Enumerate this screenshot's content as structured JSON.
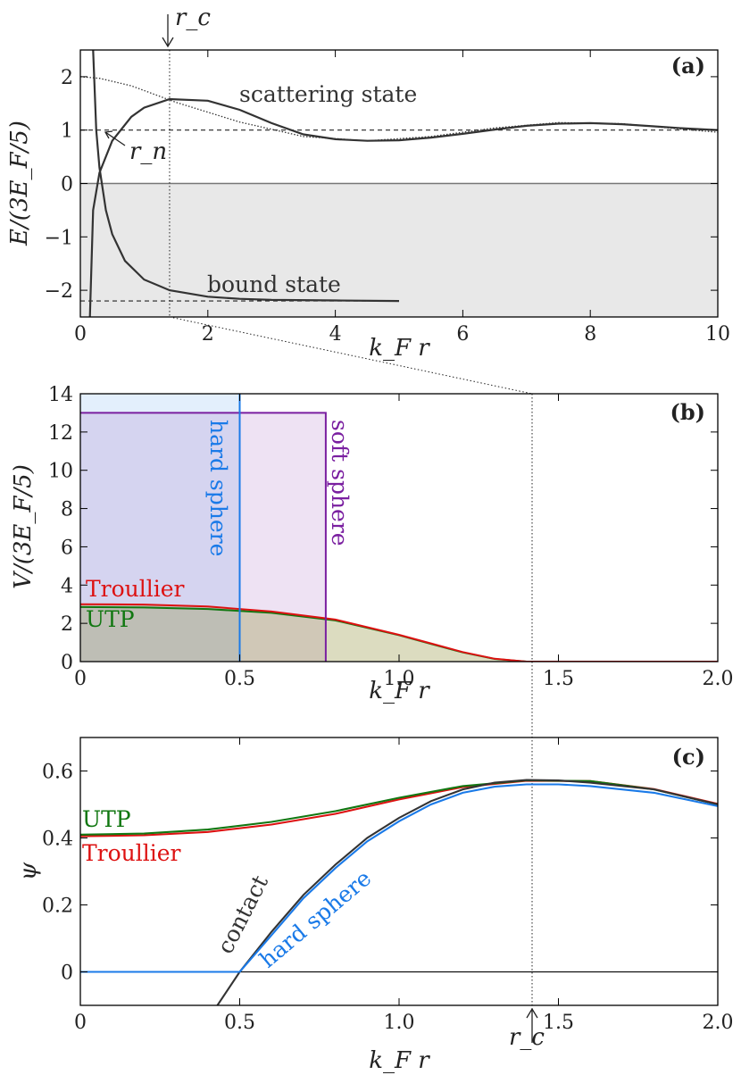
{
  "figure_title": "",
  "chart_data": [
    {
      "type": "line",
      "panel_label": "(a)",
      "xlabel": "k_F r",
      "ylabel": "E/(3E_F/5)",
      "xlim": [
        0,
        10
      ],
      "ylim": [
        -2.5,
        2.5
      ],
      "xticks": [
        "0",
        "2",
        "4",
        "6",
        "8",
        "10"
      ],
      "yticks": [
        "−2",
        "−1",
        "0",
        "1",
        "2"
      ],
      "series": [
        {
          "name": "scattering state",
          "x": [
            0.15,
            0.2,
            0.3,
            0.5,
            0.8,
            1.0,
            1.4,
            2.0,
            2.5,
            3.0,
            3.5,
            4.0,
            4.5,
            5.0,
            5.5,
            6.0,
            6.5,
            7.0,
            7.5,
            8.0,
            8.5,
            9.0,
            9.5,
            10.0
          ],
          "y": [
            -2.5,
            -0.5,
            0.2,
            0.8,
            1.25,
            1.42,
            1.58,
            1.55,
            1.38,
            1.13,
            0.92,
            0.83,
            0.8,
            0.81,
            0.86,
            0.93,
            1.01,
            1.08,
            1.12,
            1.13,
            1.11,
            1.07,
            1.03,
            1.0
          ]
        },
        {
          "name": "bound state",
          "x": [
            0.2,
            0.25,
            0.3,
            0.4,
            0.5,
            0.7,
            1.0,
            1.4,
            2.0,
            2.5,
            3.0,
            4.0,
            5.0
          ],
          "y": [
            2.5,
            1.0,
            0.3,
            -0.5,
            -0.95,
            -1.45,
            -1.8,
            -2.0,
            -2.12,
            -2.16,
            -2.18,
            -2.19,
            -2.2
          ]
        },
        {
          "name": "dotted reference",
          "x": [
            0.0,
            0.3,
            0.8,
            1.5,
            2.5,
            3.5,
            4.5,
            5.5,
            6.5,
            7.5,
            8.5,
            9.5,
            10.0
          ],
          "y": [
            2.0,
            1.97,
            1.83,
            1.52,
            1.15,
            0.88,
            0.8,
            0.88,
            1.04,
            1.14,
            1.12,
            1.01,
            0.96
          ]
        }
      ],
      "hlines": [
        {
          "name": "scattering energy",
          "y": 1.0
        },
        {
          "name": "bound energy",
          "y": -2.2
        },
        {
          "name": "zero",
          "y": 0
        }
      ],
      "vline_rc": 1.4,
      "annotations": [
        "scattering state",
        "bound state",
        "r_n",
        "r_c"
      ]
    },
    {
      "type": "line",
      "panel_label": "(b)",
      "xlabel": "k_F r",
      "ylabel": "V/(3E_F/5)",
      "xlim": [
        0,
        2.0
      ],
      "ylim": [
        0,
        14
      ],
      "xticks": [
        "0",
        "0.5",
        "1.0",
        "1.5",
        "2.0"
      ],
      "yticks": [
        "0",
        "2",
        "4",
        "6",
        "8",
        "10",
        "12",
        "14"
      ],
      "series": [
        {
          "name": "hard sphere",
          "radius": 0.5,
          "color": "#1a7ae8"
        },
        {
          "name": "soft sphere",
          "radius": 0.77,
          "height": 13,
          "color": "#7a1fa0"
        },
        {
          "name": "Troullier",
          "x": [
            0,
            0.2,
            0.4,
            0.6,
            0.8,
            1.0,
            1.1,
            1.2,
            1.3,
            1.4,
            1.5,
            2.0
          ],
          "y": [
            3.0,
            2.98,
            2.88,
            2.62,
            2.2,
            1.4,
            0.95,
            0.5,
            0.15,
            0.0,
            0.0,
            0.0
          ],
          "color": "#dd1111"
        },
        {
          "name": "UTP",
          "x": [
            0,
            0.2,
            0.4,
            0.6,
            0.8,
            1.0,
            1.1,
            1.2,
            1.3,
            1.4,
            1.5,
            2.0
          ],
          "y": [
            2.85,
            2.83,
            2.75,
            2.55,
            2.15,
            1.38,
            0.93,
            0.48,
            0.14,
            0.0,
            0.0,
            0.0
          ],
          "color": "#117711"
        }
      ],
      "annotations": [
        "Troullier",
        "UTP",
        "hard sphere",
        "soft sphere"
      ]
    },
    {
      "type": "line",
      "panel_label": "(c)",
      "xlabel": "k_F r",
      "ylabel": "ψ",
      "xlim": [
        0,
        2.0
      ],
      "ylim": [
        -0.1,
        0.7
      ],
      "xticks": [
        "0",
        "0.5",
        "1.0",
        "1.5",
        "2.0"
      ],
      "yticks": [
        "0",
        "0.2",
        "0.4",
        "0.6"
      ],
      "series": [
        {
          "name": "UTP",
          "x": [
            0,
            0.2,
            0.4,
            0.6,
            0.8,
            1.0,
            1.2,
            1.4,
            1.6,
            1.8,
            2.0
          ],
          "y": [
            0.41,
            0.413,
            0.425,
            0.448,
            0.48,
            0.52,
            0.555,
            0.572,
            0.57,
            0.545,
            0.5
          ],
          "color": "#117711"
        },
        {
          "name": "Troullier",
          "x": [
            0,
            0.2,
            0.4,
            0.6,
            0.8,
            1.0,
            1.2,
            1.4,
            1.6,
            1.8,
            2.0
          ],
          "y": [
            0.405,
            0.408,
            0.418,
            0.44,
            0.472,
            0.515,
            0.552,
            0.571,
            0.57,
            0.546,
            0.502
          ],
          "color": "#dd1111"
        },
        {
          "name": "contact",
          "x": [
            0.43,
            0.5,
            0.6,
            0.7,
            0.8,
            0.9,
            1.0,
            1.1,
            1.2,
            1.3,
            1.4,
            1.5,
            1.6,
            1.8,
            2.0
          ],
          "y": [
            -0.1,
            0.0,
            0.12,
            0.23,
            0.32,
            0.4,
            0.46,
            0.51,
            0.545,
            0.565,
            0.573,
            0.572,
            0.565,
            0.545,
            0.5
          ],
          "color": "#333333"
        },
        {
          "name": "hard sphere",
          "x": [
            0,
            0.5,
            0.6,
            0.7,
            0.8,
            0.9,
            1.0,
            1.1,
            1.2,
            1.3,
            1.4,
            1.5,
            1.6,
            1.8,
            2.0
          ],
          "y": [
            0,
            0.0,
            0.11,
            0.22,
            0.31,
            0.39,
            0.45,
            0.5,
            0.535,
            0.553,
            0.56,
            0.56,
            0.555,
            0.535,
            0.495
          ],
          "color": "#1a7ae8"
        }
      ],
      "annotations": [
        "UTP",
        "Troullier",
        "contact",
        "hard sphere",
        "r_c"
      ]
    }
  ]
}
